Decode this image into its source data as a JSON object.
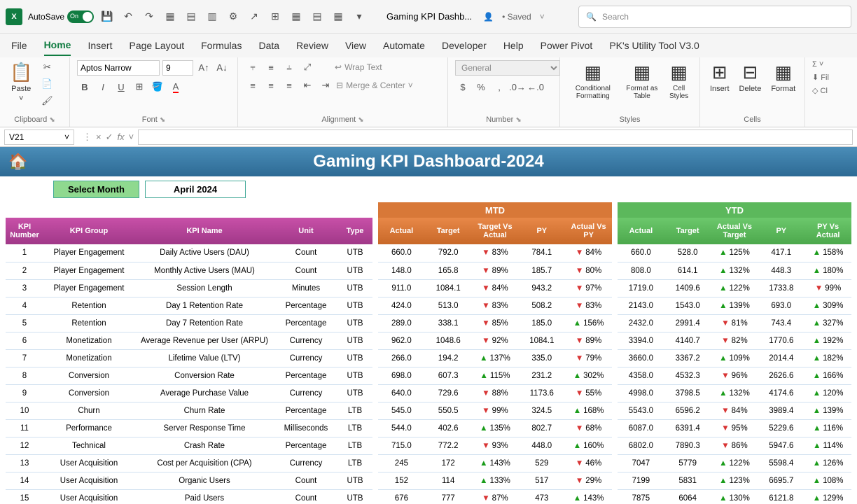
{
  "app": {
    "autosave_label": "AutoSave",
    "autosave_on": "On",
    "doc_title": "Gaming KPI Dashb...",
    "saved_status": "• Saved",
    "search_placeholder": "Search"
  },
  "tabs": [
    "File",
    "Home",
    "Insert",
    "Page Layout",
    "Formulas",
    "Data",
    "Review",
    "View",
    "Automate",
    "Developer",
    "Help",
    "Power Pivot",
    "PK's Utility Tool V3.0"
  ],
  "active_tab": 1,
  "ribbon": {
    "paste": "Paste",
    "clipboard": "Clipboard",
    "font_name": "Aptos Narrow",
    "font_size": "9",
    "font": "Font",
    "wrap": "Wrap Text",
    "merge": "Merge & Center",
    "alignment": "Alignment",
    "numfmt": "General",
    "number": "Number",
    "cond": "Conditional Formatting",
    "fmttbl": "Format as Table",
    "cellsty": "Cell Styles",
    "styles": "Styles",
    "insert": "Insert",
    "delete": "Delete",
    "format": "Format",
    "cells": "Cells",
    "fill": "Fil",
    "cl": "Cl"
  },
  "namebox": "V21",
  "dash_title": "Gaming KPI Dashboard-2024",
  "selectmonth_label": "Select Month",
  "selectmonth_value": "April 2024",
  "kpi_headers": [
    "KPI Number",
    "KPI Group",
    "KPI Name",
    "Unit",
    "Type"
  ],
  "mtd_label": "MTD",
  "ytd_label": "YTD",
  "mtd_headers": [
    "Actual",
    "Target",
    "Target Vs Actual",
    "PY",
    "Actual Vs PY"
  ],
  "ytd_headers": [
    "Actual",
    "Target",
    "Actual Vs Target",
    "PY",
    "PY Vs Actual"
  ],
  "rows": [
    {
      "n": 1,
      "g": "Player Engagement",
      "name": "Daily Active Users (DAU)",
      "unit": "Count",
      "type": "UTB",
      "mtd": {
        "a": "660.0",
        "t": "792.0",
        "tvad": "dn",
        "tva": "83%",
        "py": "784.1",
        "avpd": "dn",
        "avp": "84%"
      },
      "ytd": {
        "a": "660.0",
        "t": "528.0",
        "avtd": "up",
        "avt": "125%",
        "py": "417.1",
        "pvad": "up",
        "pva": "158%"
      }
    },
    {
      "n": 2,
      "g": "Player Engagement",
      "name": "Monthly Active Users (MAU)",
      "unit": "Count",
      "type": "UTB",
      "mtd": {
        "a": "148.0",
        "t": "165.8",
        "tvad": "dn",
        "tva": "89%",
        "py": "185.7",
        "avpd": "dn",
        "avp": "80%"
      },
      "ytd": {
        "a": "808.0",
        "t": "614.1",
        "avtd": "up",
        "avt": "132%",
        "py": "448.3",
        "pvad": "up",
        "pva": "180%"
      }
    },
    {
      "n": 3,
      "g": "Player Engagement",
      "name": "Session Length",
      "unit": "Minutes",
      "type": "UTB",
      "mtd": {
        "a": "911.0",
        "t": "1084.1",
        "tvad": "dn",
        "tva": "84%",
        "py": "943.2",
        "avpd": "dn",
        "avp": "97%"
      },
      "ytd": {
        "a": "1719.0",
        "t": "1409.6",
        "avtd": "up",
        "avt": "122%",
        "py": "1733.8",
        "pvad": "dn",
        "pva": "99%"
      }
    },
    {
      "n": 4,
      "g": "Retention",
      "name": "Day 1 Retention Rate",
      "unit": "Percentage",
      "type": "UTB",
      "mtd": {
        "a": "424.0",
        "t": "513.0",
        "tvad": "dn",
        "tva": "83%",
        "py": "508.2",
        "avpd": "dn",
        "avp": "83%"
      },
      "ytd": {
        "a": "2143.0",
        "t": "1543.0",
        "avtd": "up",
        "avt": "139%",
        "py": "693.0",
        "pvad": "up",
        "pva": "309%"
      }
    },
    {
      "n": 5,
      "g": "Retention",
      "name": "Day 7 Retention Rate",
      "unit": "Percentage",
      "type": "UTB",
      "mtd": {
        "a": "289.0",
        "t": "338.1",
        "tvad": "dn",
        "tva": "85%",
        "py": "185.0",
        "avpd": "up",
        "avp": "156%"
      },
      "ytd": {
        "a": "2432.0",
        "t": "2991.4",
        "avtd": "dn",
        "avt": "81%",
        "py": "743.4",
        "pvad": "up",
        "pva": "327%"
      }
    },
    {
      "n": 6,
      "g": "Monetization",
      "name": "Average Revenue per User (ARPU)",
      "unit": "Currency",
      "type": "UTB",
      "mtd": {
        "a": "962.0",
        "t": "1048.6",
        "tvad": "dn",
        "tva": "92%",
        "py": "1084.1",
        "avpd": "dn",
        "avp": "89%"
      },
      "ytd": {
        "a": "3394.0",
        "t": "4140.7",
        "avtd": "dn",
        "avt": "82%",
        "py": "1770.6",
        "pvad": "up",
        "pva": "192%"
      }
    },
    {
      "n": 7,
      "g": "Monetization",
      "name": "Lifetime Value (LTV)",
      "unit": "Currency",
      "type": "UTB",
      "mtd": {
        "a": "266.0",
        "t": "194.2",
        "tvad": "up",
        "tva": "137%",
        "py": "335.0",
        "avpd": "dn",
        "avp": "79%"
      },
      "ytd": {
        "a": "3660.0",
        "t": "3367.2",
        "avtd": "up",
        "avt": "109%",
        "py": "2014.4",
        "pvad": "up",
        "pva": "182%"
      }
    },
    {
      "n": 8,
      "g": "Conversion",
      "name": "Conversion Rate",
      "unit": "Percentage",
      "type": "UTB",
      "mtd": {
        "a": "698.0",
        "t": "607.3",
        "tvad": "up",
        "tva": "115%",
        "py": "231.2",
        "avpd": "up",
        "avp": "302%"
      },
      "ytd": {
        "a": "4358.0",
        "t": "4532.3",
        "avtd": "dn",
        "avt": "96%",
        "py": "2626.6",
        "pvad": "up",
        "pva": "166%"
      }
    },
    {
      "n": 9,
      "g": "Conversion",
      "name": "Average Purchase Value",
      "unit": "Currency",
      "type": "UTB",
      "mtd": {
        "a": "640.0",
        "t": "729.6",
        "tvad": "dn",
        "tva": "88%",
        "py": "1173.6",
        "avpd": "dn",
        "avp": "55%"
      },
      "ytd": {
        "a": "4998.0",
        "t": "3798.5",
        "avtd": "up",
        "avt": "132%",
        "py": "4174.6",
        "pvad": "up",
        "pva": "120%"
      }
    },
    {
      "n": 10,
      "g": "Churn",
      "name": "Churn Rate",
      "unit": "Percentage",
      "type": "LTB",
      "mtd": {
        "a": "545.0",
        "t": "550.5",
        "tvad": "dn",
        "tva": "99%",
        "py": "324.5",
        "avpd": "up",
        "avp": "168%"
      },
      "ytd": {
        "a": "5543.0",
        "t": "6596.2",
        "avtd": "dn",
        "avt": "84%",
        "py": "3989.4",
        "pvad": "up",
        "pva": "139%"
      }
    },
    {
      "n": 11,
      "g": "Performance",
      "name": "Server Response Time",
      "unit": "Milliseconds",
      "type": "LTB",
      "mtd": {
        "a": "544.0",
        "t": "402.6",
        "tvad": "up",
        "tva": "135%",
        "py": "802.7",
        "avpd": "dn",
        "avp": "68%"
      },
      "ytd": {
        "a": "6087.0",
        "t": "6391.4",
        "avtd": "dn",
        "avt": "95%",
        "py": "5229.6",
        "pvad": "up",
        "pva": "116%"
      }
    },
    {
      "n": 12,
      "g": "Technical",
      "name": "Crash Rate",
      "unit": "Percentage",
      "type": "LTB",
      "mtd": {
        "a": "715.0",
        "t": "772.2",
        "tvad": "dn",
        "tva": "93%",
        "py": "448.0",
        "avpd": "up",
        "avp": "160%"
      },
      "ytd": {
        "a": "6802.0",
        "t": "7890.3",
        "avtd": "dn",
        "avt": "86%",
        "py": "5947.6",
        "pvad": "up",
        "pva": "114%"
      }
    },
    {
      "n": 13,
      "g": "User Acquisition",
      "name": "Cost per Acquisition (CPA)",
      "unit": "Currency",
      "type": "LTB",
      "mtd": {
        "a": "245",
        "t": "172",
        "tvad": "up",
        "tva": "143%",
        "py": "529",
        "avpd": "dn",
        "avp": "46%"
      },
      "ytd": {
        "a": "7047",
        "t": "5779",
        "avtd": "up",
        "avt": "122%",
        "py": "5598.4",
        "pvad": "up",
        "pva": "126%"
      }
    },
    {
      "n": 14,
      "g": "User Acquisition",
      "name": "Organic Users",
      "unit": "Count",
      "type": "UTB",
      "mtd": {
        "a": "152",
        "t": "114",
        "tvad": "up",
        "tva": "133%",
        "py": "517",
        "avpd": "dn",
        "avp": "29%"
      },
      "ytd": {
        "a": "7199",
        "t": "5831",
        "avtd": "up",
        "avt": "123%",
        "py": "6695.7",
        "pvad": "up",
        "pva": "108%"
      }
    },
    {
      "n": 15,
      "g": "User Acquisition",
      "name": "Paid Users",
      "unit": "Count",
      "type": "UTB",
      "mtd": {
        "a": "676",
        "t": "777",
        "tvad": "dn",
        "tva": "87%",
        "py": "473",
        "avpd": "up",
        "avp": "143%"
      },
      "ytd": {
        "a": "7875",
        "t": "6064",
        "avtd": "up",
        "avt": "130%",
        "py": "6121.8",
        "pvad": "up",
        "pva": "129%"
      }
    }
  ],
  "colors": {
    "mtd": "#d87838",
    "ytd": "#5cb85c",
    "kpi": "#b040a0",
    "up": "#1a9c1a",
    "dn": "#d83333"
  }
}
